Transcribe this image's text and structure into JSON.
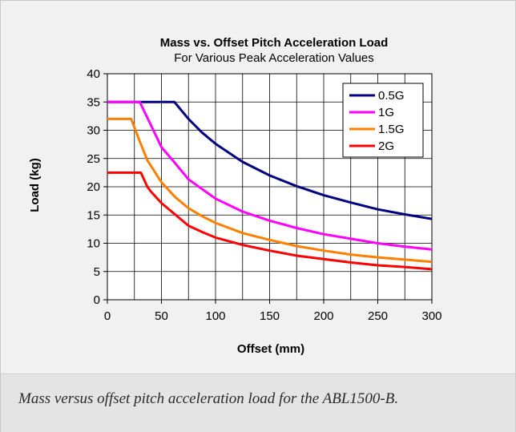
{
  "caption": "Mass versus offset pitch acceleration load for the ABL1500-B.",
  "chart_data": {
    "type": "line",
    "title": "Mass vs. Offset Pitch Acceleration Load",
    "subtitle": "For Various Peak Acceleration Values",
    "xlabel": "Offset (mm)",
    "ylabel": "Load (kg)",
    "xlim": [
      0,
      300
    ],
    "ylim": [
      0,
      40
    ],
    "xticks": [
      0,
      50,
      100,
      150,
      200,
      250,
      300
    ],
    "yticks": [
      0,
      5,
      10,
      15,
      20,
      25,
      30,
      35,
      40
    ],
    "grid": true,
    "legend_position": "top-right",
    "series": [
      {
        "name": "0.5G",
        "color": "#000080",
        "points": [
          [
            0,
            35
          ],
          [
            62,
            35
          ],
          [
            75,
            32
          ],
          [
            87.5,
            29.6
          ],
          [
            100,
            27.6
          ],
          [
            112.5,
            26
          ],
          [
            125,
            24.4
          ],
          [
            150,
            22
          ],
          [
            175,
            20.1
          ],
          [
            200,
            18.5
          ],
          [
            225,
            17.2
          ],
          [
            250,
            16
          ],
          [
            275,
            15.1
          ],
          [
            300,
            14.3
          ]
        ]
      },
      {
        "name": "1G",
        "color": "#ff00ff",
        "points": [
          [
            0,
            35
          ],
          [
            30,
            35
          ],
          [
            40,
            31
          ],
          [
            50,
            27
          ],
          [
            62.5,
            24.2
          ],
          [
            75,
            21.3
          ],
          [
            87.5,
            19.6
          ],
          [
            100,
            17.9
          ],
          [
            125,
            15.6
          ],
          [
            150,
            14
          ],
          [
            175,
            12.7
          ],
          [
            200,
            11.6
          ],
          [
            225,
            10.8
          ],
          [
            250,
            10
          ],
          [
            275,
            9.4
          ],
          [
            300,
            8.9
          ]
        ]
      },
      {
        "name": "1.5G",
        "color": "#ff8000",
        "points": [
          [
            0,
            32
          ],
          [
            22,
            32
          ],
          [
            30,
            28
          ],
          [
            37,
            24.7
          ],
          [
            50,
            20.8
          ],
          [
            62.5,
            18.2
          ],
          [
            75,
            16.2
          ],
          [
            87.5,
            14.8
          ],
          [
            100,
            13.6
          ],
          [
            125,
            11.8
          ],
          [
            150,
            10.6
          ],
          [
            175,
            9.5
          ],
          [
            200,
            8.7
          ],
          [
            225,
            8
          ],
          [
            250,
            7.5
          ],
          [
            275,
            7.1
          ],
          [
            300,
            6.7
          ]
        ]
      },
      {
        "name": "2G",
        "color": "#ff0000",
        "points": [
          [
            0,
            22.5
          ],
          [
            31,
            22.5
          ],
          [
            37,
            20
          ],
          [
            40,
            19.2
          ],
          [
            50,
            17.1
          ],
          [
            62.5,
            15.1
          ],
          [
            75,
            13.1
          ],
          [
            87.5,
            12
          ],
          [
            100,
            11
          ],
          [
            125,
            9.7
          ],
          [
            150,
            8.7
          ],
          [
            175,
            7.8
          ],
          [
            200,
            7.2
          ],
          [
            225,
            6.6
          ],
          [
            250,
            6.1
          ],
          [
            275,
            5.8
          ],
          [
            300,
            5.4
          ]
        ]
      }
    ]
  }
}
